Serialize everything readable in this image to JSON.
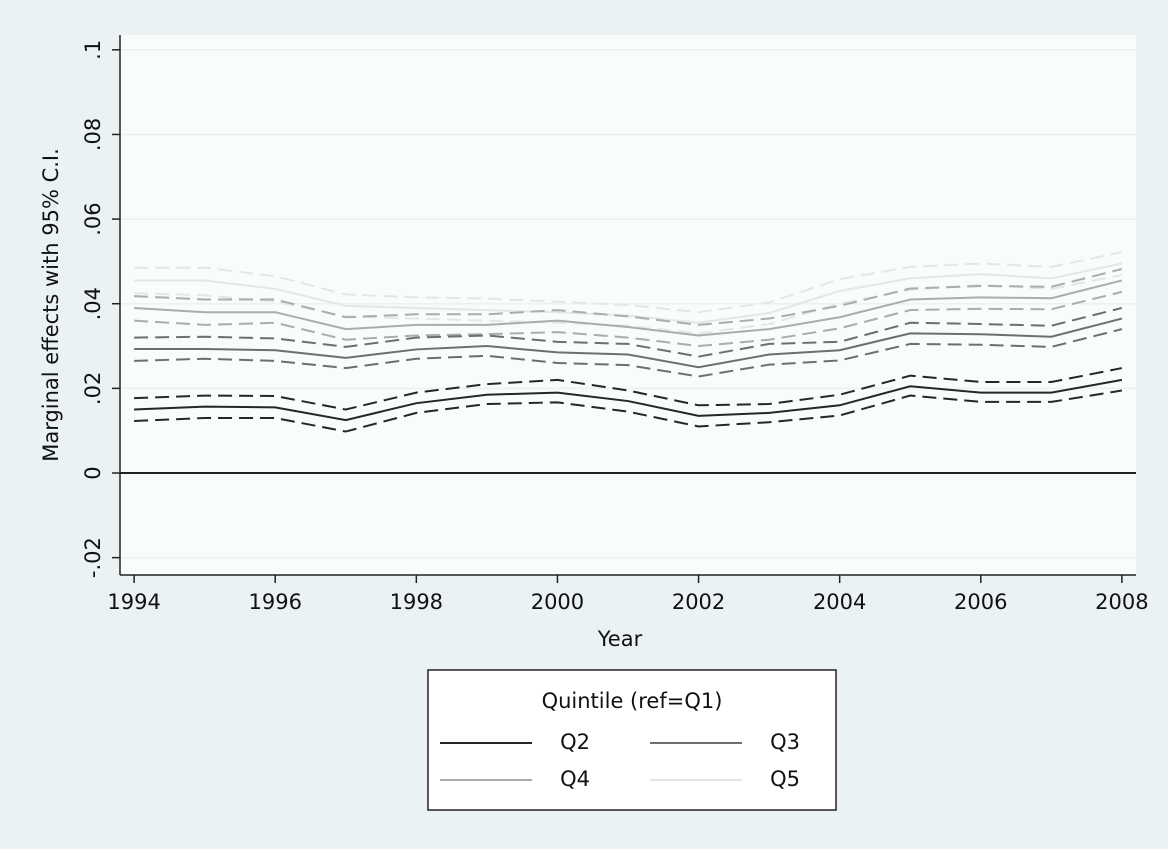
{
  "chart_data": {
    "type": "line",
    "y_label": "Marginal effects with 95% C.I.",
    "x_label": "Year",
    "legend_title": "Quintile (ref=Q1)",
    "legend_position": "bottom",
    "x": [
      1994,
      1995,
      1996,
      1997,
      1998,
      1999,
      2000,
      2001,
      2002,
      2003,
      2004,
      2005,
      2006,
      2007,
      2008
    ],
    "xlim": [
      1993.8,
      2008.2
    ],
    "xticks": [
      1994,
      1996,
      1998,
      2000,
      2002,
      2004,
      2006,
      2008
    ],
    "ylim": [
      -0.0241,
      0.1035
    ],
    "yticks": [
      {
        "value": -0.02,
        "label": "-.02"
      },
      0,
      {
        "value": 0.02,
        "label": ".02"
      },
      {
        "value": 0.04,
        "label": ".04"
      },
      {
        "value": 0.06,
        "label": ".06"
      },
      {
        "value": 0.08,
        "label": ".08"
      },
      {
        "value": 0.1,
        "label": ".1"
      }
    ],
    "grid": true,
    "yline": 0,
    "series": [
      {
        "name": "Q2",
        "color": "#262626",
        "values": [
          0.015,
          0.0157,
          0.0155,
          0.0125,
          0.0165,
          0.0185,
          0.019,
          0.017,
          0.0135,
          0.0142,
          0.016,
          0.0205,
          0.019,
          0.019,
          0.022
        ],
        "lower": [
          0.0123,
          0.013,
          0.013,
          0.0098,
          0.0142,
          0.0163,
          0.0167,
          0.0145,
          0.011,
          0.012,
          0.0136,
          0.0183,
          0.0168,
          0.0168,
          0.0195
        ],
        "upper": [
          0.0177,
          0.0183,
          0.0182,
          0.015,
          0.019,
          0.021,
          0.022,
          0.0195,
          0.016,
          0.0163,
          0.0185,
          0.023,
          0.0215,
          0.0215,
          0.0248
        ]
      },
      {
        "name": "Q3",
        "color": "#6e6e6e",
        "values": [
          0.0293,
          0.0293,
          0.029,
          0.0272,
          0.0292,
          0.03,
          0.0285,
          0.028,
          0.025,
          0.028,
          0.029,
          0.033,
          0.0328,
          0.0322,
          0.0365
        ],
        "lower": [
          0.0265,
          0.027,
          0.0265,
          0.0248,
          0.027,
          0.0277,
          0.026,
          0.0255,
          0.0228,
          0.0256,
          0.0266,
          0.0305,
          0.0303,
          0.0298,
          0.034
        ],
        "upper": [
          0.032,
          0.0322,
          0.0318,
          0.0298,
          0.032,
          0.0325,
          0.031,
          0.0305,
          0.0275,
          0.0305,
          0.031,
          0.0355,
          0.0352,
          0.0348,
          0.039
        ]
      },
      {
        "name": "Q4",
        "color": "#acacac",
        "values": [
          0.039,
          0.038,
          0.038,
          0.034,
          0.035,
          0.035,
          0.036,
          0.0345,
          0.0325,
          0.034,
          0.0368,
          0.041,
          0.0415,
          0.0413,
          0.0455
        ],
        "lower": [
          0.036,
          0.035,
          0.0355,
          0.0315,
          0.0325,
          0.0328,
          0.0333,
          0.032,
          0.03,
          0.0315,
          0.0342,
          0.0385,
          0.0388,
          0.0387,
          0.0428
        ],
        "upper": [
          0.0418,
          0.041,
          0.041,
          0.0368,
          0.0375,
          0.0375,
          0.0385,
          0.037,
          0.035,
          0.0365,
          0.0395,
          0.0436,
          0.0442,
          0.044,
          0.0482
        ]
      },
      {
        "name": "Q5",
        "color": "#e6e6e6",
        "values": [
          0.0455,
          0.0455,
          0.0435,
          0.0395,
          0.039,
          0.0385,
          0.038,
          0.0372,
          0.0355,
          0.0378,
          0.043,
          0.046,
          0.047,
          0.046,
          0.0495
        ],
        "lower": [
          0.0425,
          0.042,
          0.0405,
          0.037,
          0.0365,
          0.036,
          0.0355,
          0.0348,
          0.033,
          0.0352,
          0.04,
          0.0433,
          0.0445,
          0.0435,
          0.0468
        ],
        "upper": [
          0.0485,
          0.0485,
          0.0465,
          0.0422,
          0.0415,
          0.0412,
          0.0405,
          0.0397,
          0.038,
          0.0403,
          0.0458,
          0.0487,
          0.0495,
          0.0487,
          0.0522
        ]
      }
    ]
  }
}
